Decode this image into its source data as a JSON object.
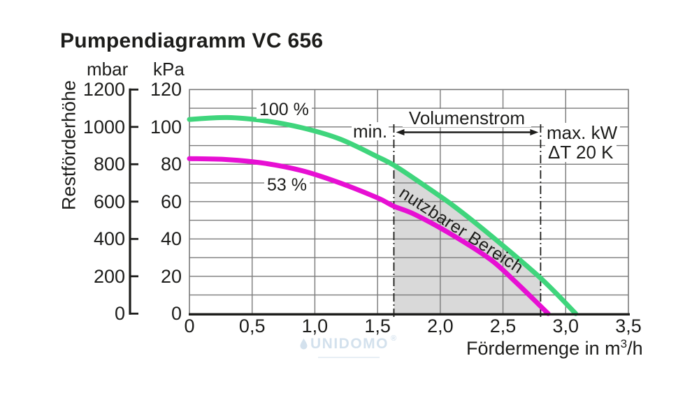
{
  "title": "Pumpendiagramm VC 656",
  "watermark": {
    "icon": "droplet-icon",
    "text": "UNIDOMO",
    "sup": "®"
  },
  "colors": {
    "ink": "#1d1d1b",
    "grid": "#7a7a7a",
    "green": "#3fd57c",
    "magenta": "#e70fd3",
    "shade": "#d9d9d9",
    "watermark": "#d3e1ed"
  },
  "chart_data": {
    "type": "line",
    "title": "Pumpendiagramm VC 656",
    "xlabel_text": "Fördermenge in m³/h",
    "xlabel": {
      "base": "Fördermenge in m",
      "sup": "3",
      "rest": "/h"
    },
    "ylabel": "Restförderhöhe",
    "x_range": [
      0,
      3.5
    ],
    "x_tick_values": [
      0,
      0.5,
      1,
      1.5,
      2,
      2.5,
      3,
      3.5
    ],
    "x_tick_labels": [
      "0",
      "0,5",
      "1,0",
      "1,5",
      "2,0",
      "2,5",
      "3,0",
      "3,5"
    ],
    "y_range_kpa": [
      0,
      120
    ],
    "y_scales": [
      {
        "unit": "mbar",
        "tick_labels": [
          "1200",
          "1000",
          "800",
          "600",
          "400",
          "200",
          "0"
        ],
        "tick_values": [
          1200,
          1000,
          800,
          600,
          400,
          200,
          0
        ]
      },
      {
        "unit": "kPa",
        "tick_labels": [
          "120",
          "100",
          "80",
          "60",
          "40",
          "20",
          "0"
        ],
        "tick_values": [
          120,
          100,
          80,
          60,
          40,
          20,
          0
        ]
      }
    ],
    "grid": {
      "x_step": 0.5,
      "y_step_kpa": 10,
      "color": "#7a7a7a",
      "visible": true
    },
    "series": [
      {
        "name": "100 %",
        "color": "#3fd57c",
        "points": [
          [
            0,
            104
          ],
          [
            0.3,
            105
          ],
          [
            0.6,
            103.3
          ],
          [
            0.9,
            99.5
          ],
          [
            1.2,
            93.5
          ],
          [
            1.5,
            84
          ],
          [
            1.63,
            79.5
          ],
          [
            1.8,
            72
          ],
          [
            2.1,
            58
          ],
          [
            2.4,
            42
          ],
          [
            2.8,
            19
          ],
          [
            3.08,
            0
          ]
        ]
      },
      {
        "name": "53 %",
        "color": "#e70fd3",
        "points": [
          [
            0,
            83
          ],
          [
            0.3,
            82.5
          ],
          [
            0.6,
            80.5
          ],
          [
            0.9,
            76.5
          ],
          [
            1.2,
            70
          ],
          [
            1.5,
            62
          ],
          [
            1.63,
            57.5
          ],
          [
            1.8,
            53
          ],
          [
            2.1,
            42
          ],
          [
            2.4,
            29
          ],
          [
            2.6,
            17
          ],
          [
            2.86,
            0
          ]
        ]
      }
    ],
    "annotations": {
      "min_line_x": 1.63,
      "max_line_x": 2.8,
      "min_label": "min.",
      "range_label": "Volumenstrom",
      "max_label_line1": "max. kW",
      "max_label_line2": "ΔT 20 K",
      "shaded_label": "nutzbarer Bereich",
      "shaded_color": "#d9d9d9"
    }
  }
}
